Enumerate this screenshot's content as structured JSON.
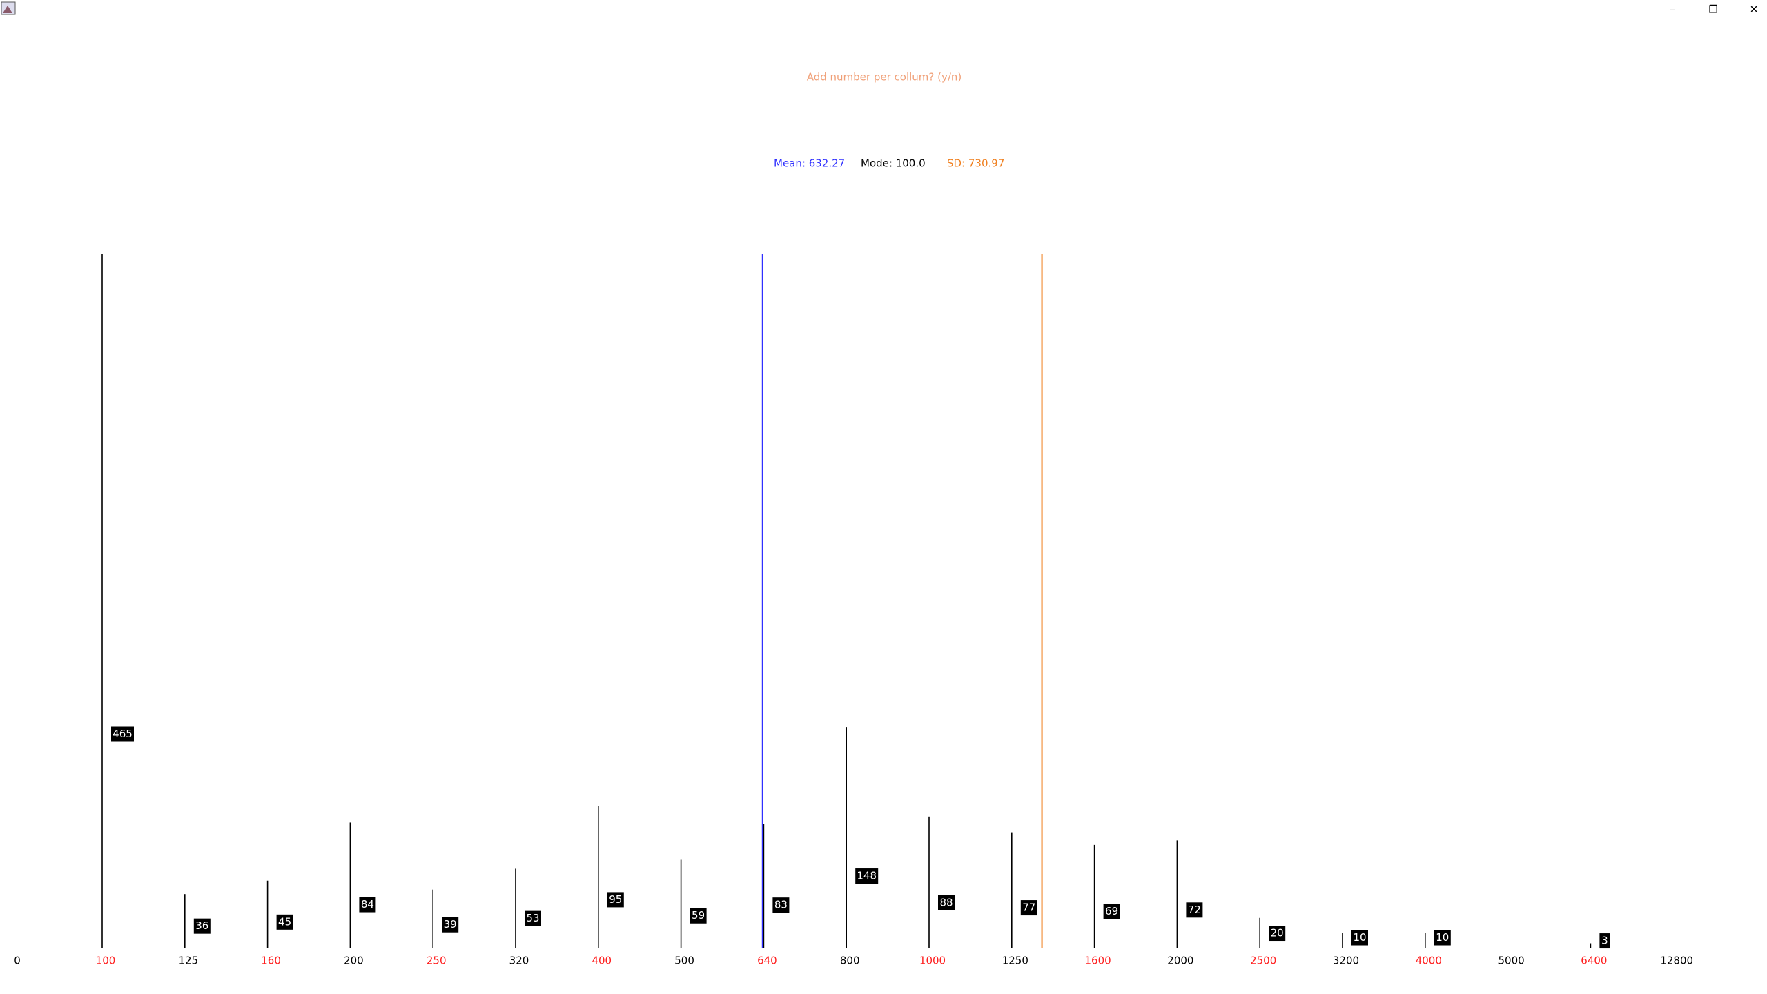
{
  "window": {
    "controls": [
      "–",
      "❐",
      "✕"
    ]
  },
  "chart_data": {
    "type": "bar",
    "title": "Add number per collum? (y/n)",
    "title_color": "#f0a078",
    "mean": 632.27,
    "mean_label": "Mean: 632.27",
    "mean_color": "#3030ff",
    "mode": 100.0,
    "mode_label": "Mode: 100.0",
    "mode_color": "#000000",
    "sd": 730.97,
    "sd_label": "SD: 730.97",
    "sd_color": "#f08020",
    "categories": [
      "0",
      "100",
      "125",
      "160",
      "200",
      "250",
      "320",
      "400",
      "500",
      "640",
      "800",
      "1000",
      "1250",
      "1600",
      "2000",
      "2500",
      "3200",
      "4000",
      "5000",
      "6400",
      "12800"
    ],
    "category_values": [
      0,
      100,
      125,
      160,
      200,
      250,
      320,
      400,
      500,
      640,
      800,
      1000,
      1250,
      1600,
      2000,
      2500,
      3200,
      4000,
      5000,
      6400,
      12800
    ],
    "category_colors": [
      "#000000",
      "#ff2020",
      "#000000",
      "#ff2020",
      "#000000",
      "#ff2020",
      "#000000",
      "#ff2020",
      "#000000",
      "#ff2020",
      "#000000",
      "#ff2020",
      "#000000",
      "#ff2020",
      "#000000",
      "#ff2020",
      "#000000",
      "#ff2020",
      "#000000",
      "#ff2020",
      "#000000"
    ],
    "values": [
      null,
      465,
      36,
      45,
      84,
      39,
      53,
      95,
      59,
      83,
      148,
      88,
      77,
      69,
      72,
      20,
      10,
      10,
      null,
      3,
      null
    ],
    "color": "#000000",
    "ylim": [
      0,
      465
    ]
  }
}
